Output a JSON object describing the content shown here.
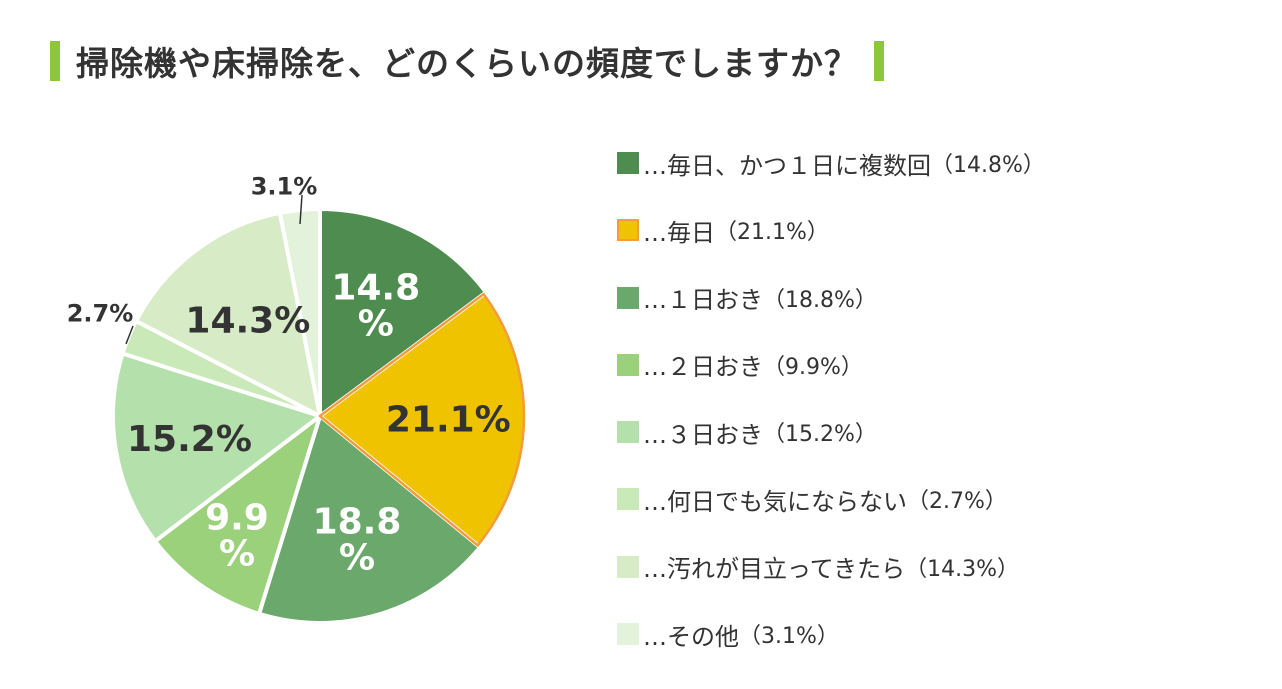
{
  "title": "掃除機や床掃除を、どのくらいの頻度でしますか？",
  "colors": {
    "title_bar": "#8cc63f"
  },
  "chart_data": {
    "type": "pie",
    "title": "掃除機や床掃除を、どのくらいの頻度でしますか？",
    "unit": "%",
    "start": "12 o'clock, clockwise",
    "slices": [
      {
        "label": "毎日、かつ１日に複数回",
        "value": 14.8,
        "display": "14.8\n%",
        "legend": "…毎日、かつ１日に複数回",
        "legend_pct": "（14.8%）",
        "color": "#4e8c4f",
        "label_color": "#ffffff"
      },
      {
        "label": "毎日",
        "value": 21.1,
        "display": "21.1%",
        "legend": "…毎日",
        "legend_pct": "（21.1%）",
        "color": "#efc300",
        "label_color": "#333333",
        "border": "#f39b3d"
      },
      {
        "label": "１日おき",
        "value": 18.8,
        "display": "18.8\n%",
        "legend": "…１日おき",
        "legend_pct": "（18.8%）",
        "color": "#6aa86b",
        "label_color": "#ffffff"
      },
      {
        "label": "２日おき",
        "value": 9.9,
        "display": "9.9\n%",
        "legend": "…２日おき",
        "legend_pct": "（9.9%）",
        "color": "#9ad17a",
        "label_color": "#ffffff"
      },
      {
        "label": "３日おき",
        "value": 15.2,
        "display": "15.2%",
        "legend": "…３日おき",
        "legend_pct": "（15.2%）",
        "color": "#b3e0ab",
        "label_color": "#333333"
      },
      {
        "label": "何日でも気にならない",
        "value": 2.7,
        "display": "2.7%",
        "legend": "…何日でも気にならない",
        "legend_pct": "（2.7%）",
        "color": "#c9e9b8",
        "label_color": "#333333"
      },
      {
        "label": "汚れが目立ってきたら",
        "value": 14.3,
        "display": "14.3%",
        "legend": "…汚れが目立ってきたら",
        "legend_pct": "（14.3%）",
        "color": "#d7ebc7",
        "label_color": "#333333"
      },
      {
        "label": "その他",
        "value": 3.1,
        "display": "3.1%",
        "legend": "…その他",
        "legend_pct": "（3.1%）",
        "color": "#e3f2db",
        "label_color": "#333333"
      }
    ]
  }
}
